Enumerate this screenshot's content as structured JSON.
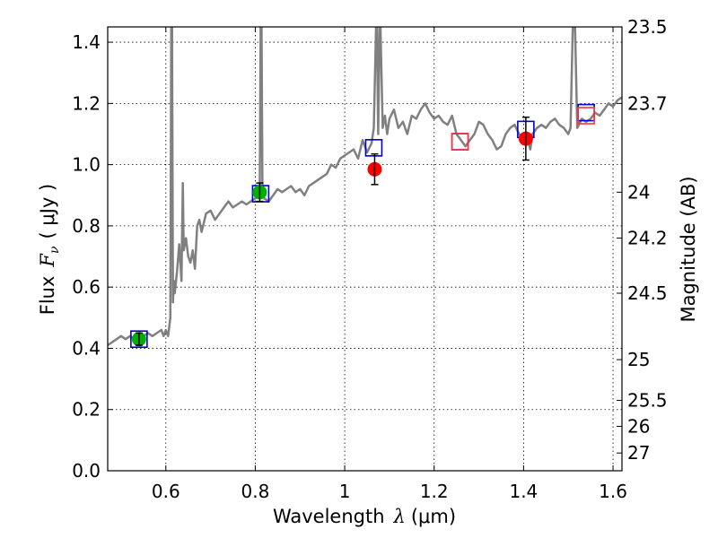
{
  "chart_data": {
    "type": "scatter",
    "xlabel_text": "Wavelength",
    "xlabel_symbol": "λ",
    "xlabel_unit": "(μm)",
    "ylabel_text": "Flux",
    "ylabel_symbol": "F",
    "ylabel_subscript": "ν",
    "ylabel_unit": "( μJy )",
    "y2label": "Magnitude (AB)",
    "xlim": [
      0.47,
      1.62
    ],
    "ylim": [
      0.0,
      1.45
    ],
    "grid": true,
    "x_ticks": [
      {
        "value": 0.6,
        "label": "0.6"
      },
      {
        "value": 0.8,
        "label": "0.8"
      },
      {
        "value": 1.0,
        "label": "1"
      },
      {
        "value": 1.2,
        "label": "1.2"
      },
      {
        "value": 1.4,
        "label": "1.4"
      },
      {
        "value": 1.6,
        "label": "1.6"
      }
    ],
    "y_ticks": [
      {
        "value": 0.0,
        "label": "0.0"
      },
      {
        "value": 0.2,
        "label": "0.2"
      },
      {
        "value": 0.4,
        "label": "0.4"
      },
      {
        "value": 0.6,
        "label": "0.6"
      },
      {
        "value": 0.8,
        "label": "0.8"
      },
      {
        "value": 1.0,
        "label": "1.0"
      },
      {
        "value": 1.2,
        "label": "1.2"
      },
      {
        "value": 1.4,
        "label": "1.4"
      }
    ],
    "y2_ticks": [
      {
        "flux": 1.45,
        "label": "23.5"
      },
      {
        "flux": 1.2,
        "label": "23.7"
      },
      {
        "flux": 0.91,
        "label": "24"
      },
      {
        "flux": 0.76,
        "label": "24.2"
      },
      {
        "flux": 0.58,
        "label": "24.5"
      },
      {
        "flux": 0.363,
        "label": "25"
      },
      {
        "flux": 0.23,
        "label": "25.5"
      },
      {
        "flux": 0.145,
        "label": "26"
      },
      {
        "flux": 0.058,
        "label": "27"
      }
    ],
    "colors": {
      "model": "#808080",
      "green": "#00b000",
      "red": "#ff0000",
      "model_box": "#0000cc",
      "pink_box": "#ff3333",
      "errorbar": "#000000"
    },
    "model_spectrum": {
      "x": [
        0.47,
        0.48,
        0.49,
        0.5,
        0.51,
        0.52,
        0.53,
        0.54,
        0.55,
        0.56,
        0.57,
        0.58,
        0.59,
        0.595,
        0.6,
        0.605,
        0.61,
        0.612,
        0.614,
        0.616,
        0.618,
        0.62,
        0.625,
        0.63,
        0.635,
        0.638,
        0.64,
        0.645,
        0.65,
        0.655,
        0.66,
        0.665,
        0.67,
        0.675,
        0.68,
        0.69,
        0.7,
        0.71,
        0.72,
        0.73,
        0.74,
        0.75,
        0.76,
        0.77,
        0.78,
        0.79,
        0.8,
        0.81,
        0.812,
        0.814,
        0.816,
        0.818,
        0.82,
        0.83,
        0.84,
        0.85,
        0.86,
        0.87,
        0.88,
        0.89,
        0.9,
        0.91,
        0.92,
        0.93,
        0.94,
        0.95,
        0.96,
        0.97,
        0.98,
        0.99,
        1.0,
        1.01,
        1.02,
        1.03,
        1.04,
        1.05,
        1.06,
        1.065,
        1.07,
        1.072,
        1.075,
        1.078,
        1.08,
        1.085,
        1.09,
        1.095,
        1.1,
        1.11,
        1.12,
        1.13,
        1.14,
        1.15,
        1.16,
        1.17,
        1.18,
        1.19,
        1.2,
        1.21,
        1.22,
        1.23,
        1.24,
        1.25,
        1.26,
        1.27,
        1.28,
        1.29,
        1.3,
        1.31,
        1.32,
        1.33,
        1.34,
        1.35,
        1.36,
        1.37,
        1.38,
        1.39,
        1.4,
        1.405,
        1.41,
        1.415,
        1.42,
        1.43,
        1.44,
        1.45,
        1.46,
        1.47,
        1.48,
        1.49,
        1.5,
        1.505,
        1.51,
        1.515,
        1.52,
        1.53,
        1.54,
        1.55,
        1.56,
        1.57,
        1.58,
        1.59,
        1.6,
        1.61,
        1.62
      ],
      "y": [
        0.41,
        0.42,
        0.43,
        0.44,
        0.43,
        0.44,
        0.43,
        0.44,
        0.44,
        0.45,
        0.44,
        0.45,
        0.46,
        0.44,
        0.46,
        0.44,
        0.5,
        1.45,
        1.45,
        0.55,
        0.62,
        0.58,
        0.65,
        0.74,
        0.62,
        0.94,
        0.72,
        0.76,
        0.7,
        0.68,
        0.72,
        0.66,
        0.8,
        0.82,
        0.78,
        0.84,
        0.85,
        0.82,
        0.84,
        0.86,
        0.88,
        0.86,
        0.87,
        0.88,
        0.87,
        0.88,
        0.89,
        0.9,
        1.45,
        1.45,
        0.92,
        0.9,
        0.89,
        0.88,
        0.9,
        0.92,
        0.91,
        0.92,
        0.93,
        0.91,
        0.92,
        0.9,
        0.93,
        0.94,
        0.95,
        0.96,
        0.97,
        1.0,
        0.99,
        1.02,
        1.03,
        1.04,
        1.05,
        1.02,
        1.08,
        1.04,
        1.07,
        1.12,
        1.45,
        1.45,
        1.1,
        1.45,
        1.45,
        1.12,
        1.16,
        1.1,
        1.15,
        1.18,
        1.12,
        1.14,
        1.1,
        1.16,
        1.15,
        1.18,
        1.2,
        1.17,
        1.15,
        1.16,
        1.14,
        1.13,
        1.16,
        1.1,
        1.08,
        1.06,
        1.08,
        1.1,
        1.14,
        1.13,
        1.1,
        1.08,
        1.05,
        1.06,
        1.1,
        1.12,
        1.13,
        1.1,
        1.08,
        1.1,
        1.08,
        1.05,
        1.1,
        1.12,
        1.13,
        1.12,
        1.14,
        1.15,
        1.13,
        1.12,
        1.1,
        1.12,
        1.45,
        1.45,
        1.12,
        1.15,
        1.14,
        1.15,
        1.17,
        1.16,
        1.18,
        1.2,
        1.19,
        1.21,
        1.22
      ]
    },
    "observed_points": [
      {
        "x": 0.54,
        "y": 0.43,
        "err": 0.02,
        "color": "green"
      },
      {
        "x": 0.81,
        "y": 0.91,
        "err": 0.03,
        "color": "green"
      },
      {
        "x": 1.067,
        "y": 0.985,
        "err": 0.05,
        "color": "red"
      },
      {
        "x": 1.405,
        "y": 1.085,
        "err": 0.07,
        "color": "red"
      }
    ],
    "model_boxes": [
      {
        "x": 0.54,
        "y": 0.43,
        "color": "model_box"
      },
      {
        "x": 0.812,
        "y": 0.905,
        "color": "model_box"
      },
      {
        "x": 1.065,
        "y": 1.055,
        "color": "model_box"
      },
      {
        "x": 1.258,
        "y": 1.075,
        "color": "model_box"
      },
      {
        "x": 1.405,
        "y": 1.115,
        "color": "model_box"
      },
      {
        "x": 1.54,
        "y": 1.17,
        "color": "model_box"
      },
      {
        "x": 1.258,
        "y": 1.075,
        "color": "pink_box"
      },
      {
        "x": 1.54,
        "y": 1.16,
        "color": "pink_box"
      }
    ]
  }
}
